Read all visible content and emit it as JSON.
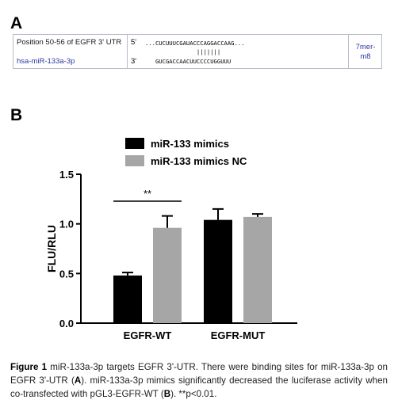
{
  "panel_a": {
    "label": "A",
    "utr_name": "Position 50-56 of EGFR 3' UTR",
    "mir_name": "hsa-miR-133a-3p",
    "strand_top": "5'",
    "strand_bottom": "3'",
    "seq_top": "...CUCUUUCGAUACCCAGGACCAAG...",
    "seq_pairing": "               |||||||",
    "seq_bottom": "   GUCGACCAACUUCCCCUGGUUU",
    "site_type_1": "7mer-",
    "site_type_2": "m8"
  },
  "panel_b": {
    "label": "B"
  },
  "chart_data": {
    "type": "bar",
    "categories": [
      "EGFR-WT",
      "EGFR-MUT"
    ],
    "series": [
      {
        "name": "miR-133 mimics",
        "values": [
          0.48,
          1.04
        ],
        "errors": [
          0.03,
          0.11
        ],
        "color": "#000000"
      },
      {
        "name": "miR-133 mimics NC",
        "values": [
          0.96,
          1.07
        ],
        "errors": [
          0.12,
          0.03
        ],
        "color": "#a6a6a6"
      }
    ],
    "ylabel": "FLU/RLU",
    "xlabel": "",
    "ylim": [
      0,
      1.5
    ],
    "yticks": [
      "0.0",
      "0.5",
      "1.0",
      "1.5"
    ],
    "legend_position": "top",
    "grid": false,
    "annotation": {
      "text": "**",
      "group": "EGFR-WT"
    }
  },
  "caption": {
    "fig_label": "Figure 1",
    "part1": " miR-133a-3p targets EGFR 3'-UTR. There were binding sites for miR-133a-3p on EGFR 3'-UTR (",
    "ref_a": "A",
    "part2": "). miR-133a-3p mimics significantly decreased the luciferase activity when co-transfected with pGL3-EGFR-WT (",
    "ref_b": "B",
    "part3": "). **p<0.01."
  }
}
